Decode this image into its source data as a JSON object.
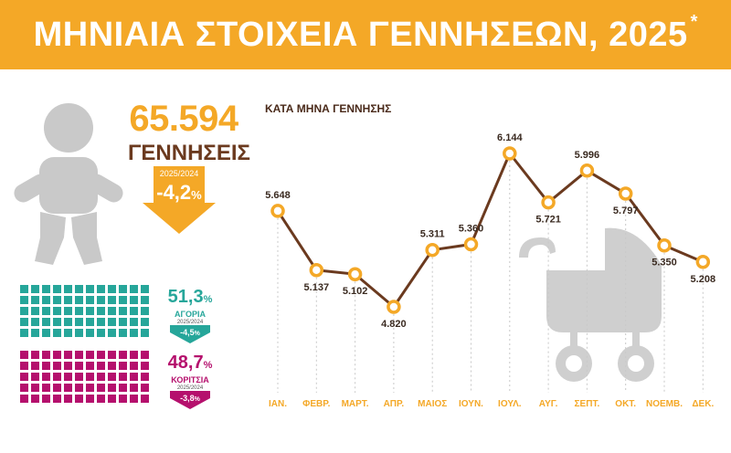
{
  "header": {
    "title": "ΜΗΝΙΑΙΑ ΣΤΟΙΧΕΙΑ ΓΕΝΝΗΣΕΩΝ, 2025",
    "footnote_mark": "*"
  },
  "summary": {
    "total_births": "65.594",
    "total_label": "ΓΕΝΝΗΣΕΙΣ",
    "change_period": "2025/2024",
    "change_value": "-4,2",
    "change_unit": "%"
  },
  "sex_breakdown": {
    "boys": {
      "percent": "51,3",
      "unit": "%",
      "label": "ΑΓΟΡΙΑ",
      "change_period": "2025/2024",
      "change": "-4,5",
      "change_unit": "%",
      "color": "#26a69a"
    },
    "girls": {
      "percent": "48,7",
      "unit": "%",
      "label": "ΚΟΡΙΤΣΙΑ",
      "change_period": "2025/2024",
      "change": "-3,8",
      "change_unit": "%",
      "color": "#b5106d"
    }
  },
  "chart_data": {
    "type": "line",
    "title": "ΚΑΤΑ ΜΗΝΑ ΓΕΝΝΗΣΗΣ",
    "categories": [
      "ΙΑΝ.",
      "ΦΕΒΡ.",
      "ΜΑΡΤ.",
      "ΑΠΡ.",
      "ΜΑΙΟΣ",
      "ΙΟΥΝ.",
      "ΙΟΥΛ.",
      "ΑΥΓ.",
      "ΣΕΠΤ.",
      "ΟΚΤ.",
      "ΝΟΕΜΒ.",
      "ΔΕΚ."
    ],
    "values": [
      5648,
      5137,
      5102,
      4820,
      5311,
      5360,
      6144,
      5721,
      5996,
      5797,
      5350,
      5208
    ],
    "value_labels": [
      "5.648",
      "5.137",
      "5.102",
      "4.820",
      "5.311",
      "5.360",
      "6.144",
      "5.721",
      "5.996",
      "5.797",
      "5.350",
      "5.208"
    ],
    "grid": false,
    "legend": false,
    "colors": {
      "line": "#6b3a1f",
      "marker_fill": "#ffffff",
      "marker_stroke": "#f4a827",
      "drop_line": "#c8c8c8",
      "tick_label": "#f4a827"
    }
  },
  "colors": {
    "accent": "#f4a827",
    "brown": "#6b3a1f",
    "silhouette": "#c9c9c9"
  }
}
